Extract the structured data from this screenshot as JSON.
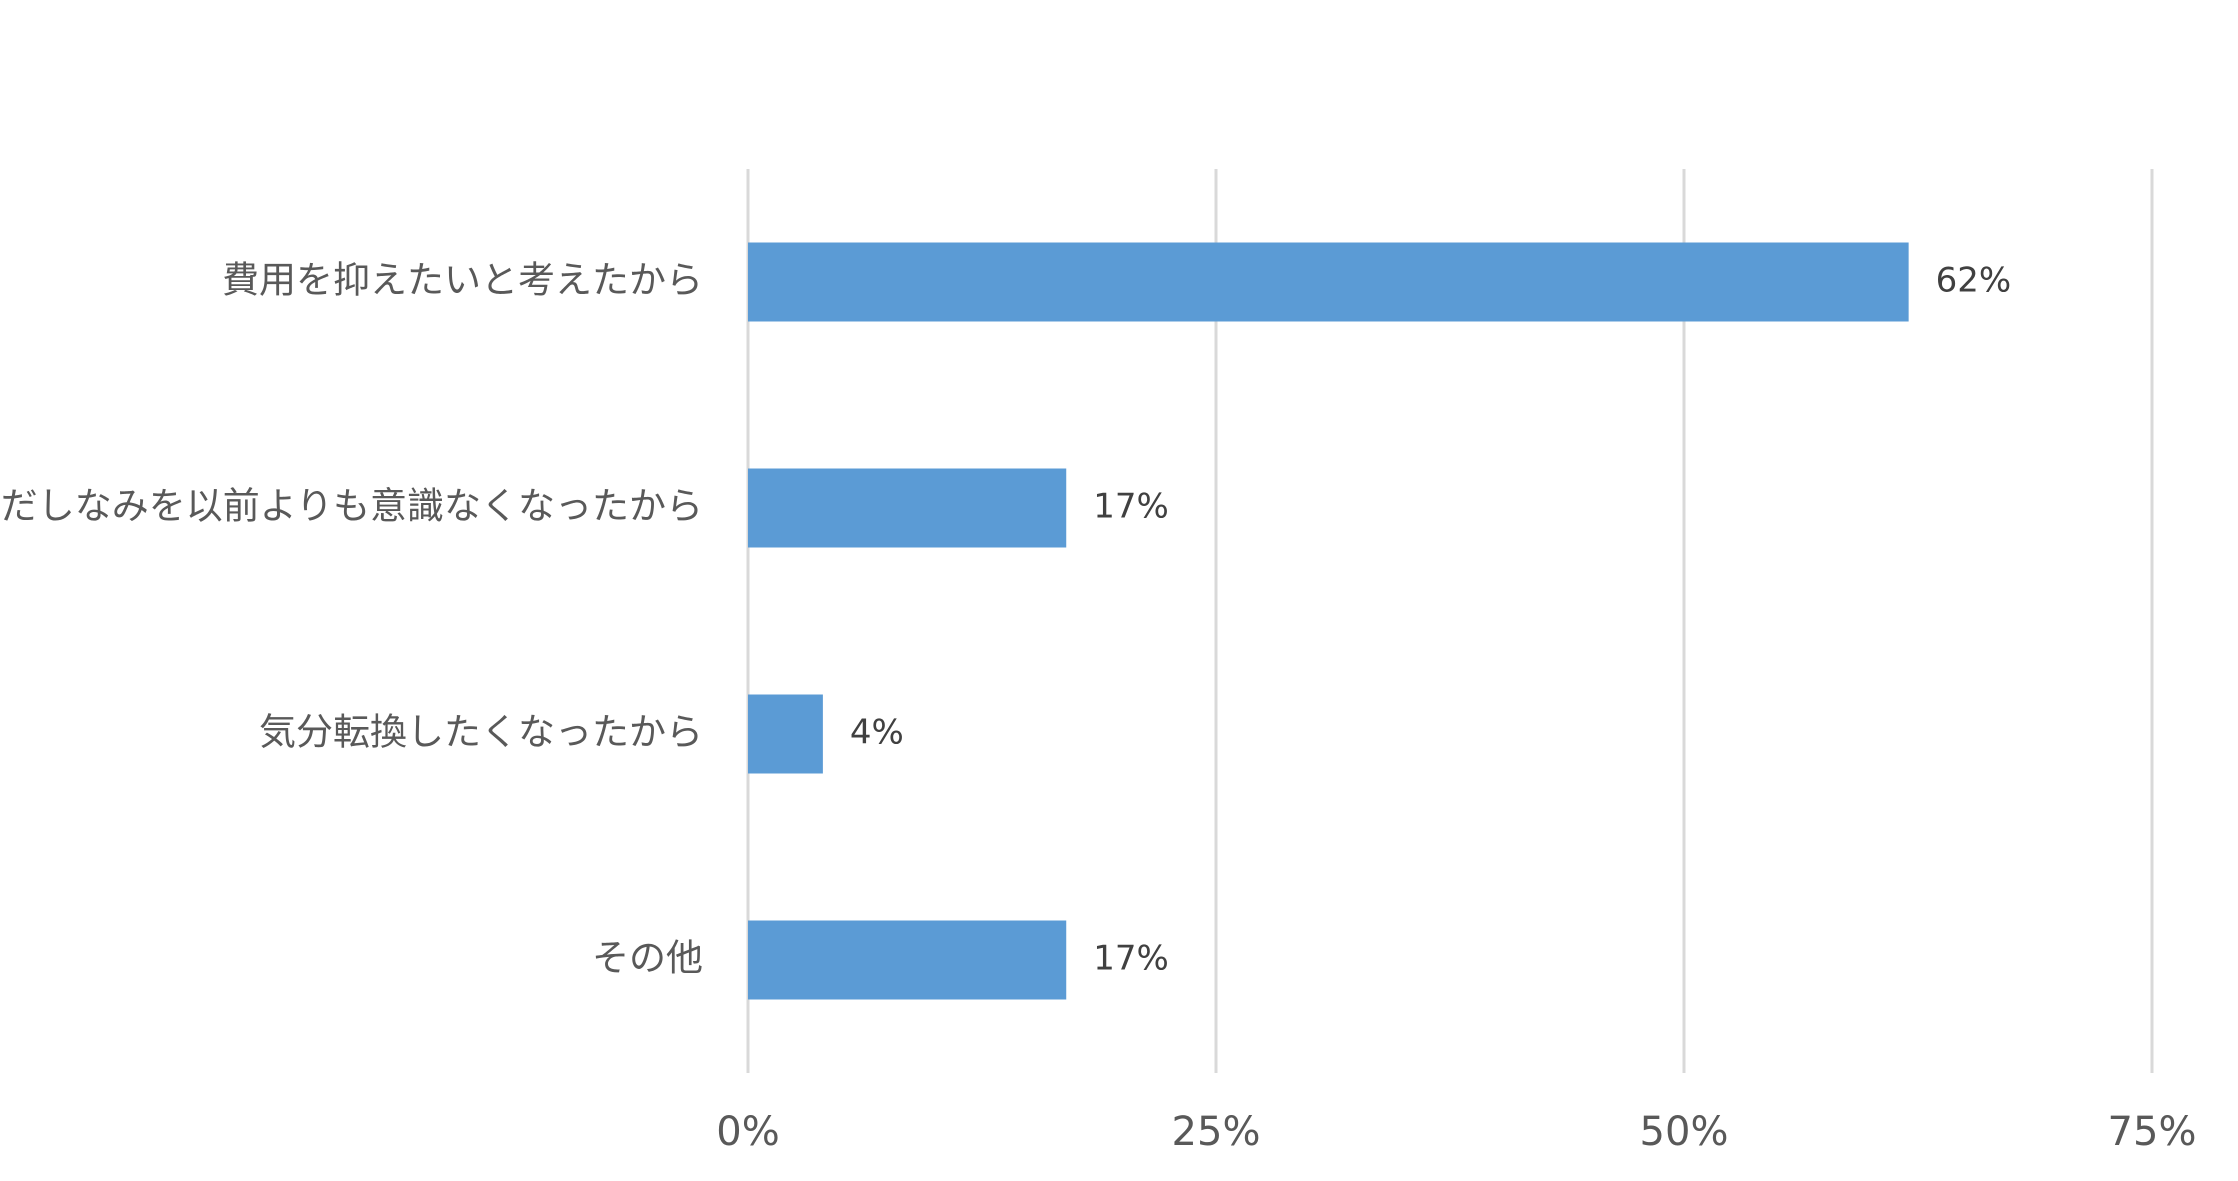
{
  "chart_data": {
    "type": "bar",
    "orientation": "horizontal",
    "categories": [
      "費用を抑えたいと考えたから",
      "身だしなみを以前よりも意識なくなったから",
      "気分転換したくなったから",
      "その他"
    ],
    "values": [
      62,
      17,
      4,
      17
    ],
    "value_labels": [
      "62%",
      "17%",
      "4%",
      "17%"
    ],
    "color": "#5b9bd5",
    "xlim": [
      0,
      75
    ],
    "xticks": [
      {
        "value": 0,
        "label": "0%"
      },
      {
        "value": 25,
        "label": "25%"
      },
      {
        "value": 50,
        "label": "50%"
      },
      {
        "value": 75,
        "label": "75%"
      }
    ],
    "grid": true
  }
}
